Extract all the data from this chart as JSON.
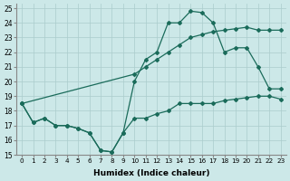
{
  "xlabel": "Humidex (Indice chaleur)",
  "bg_color": "#cce8e8",
  "line_color": "#1a6b5a",
  "grid_color": "#aacccc",
  "xlim": [
    -0.5,
    23.5
  ],
  "ylim": [
    15,
    25.3
  ],
  "xticks": [
    0,
    1,
    2,
    3,
    4,
    5,
    6,
    7,
    8,
    9,
    10,
    11,
    12,
    13,
    14,
    15,
    16,
    17,
    18,
    19,
    20,
    21,
    22,
    23
  ],
  "yticks": [
    15,
    16,
    17,
    18,
    19,
    20,
    21,
    22,
    23,
    24,
    25
  ],
  "line1_x": [
    0,
    1,
    2,
    3,
    4,
    5,
    6,
    7,
    8,
    9,
    10,
    11,
    12,
    13,
    14,
    15,
    16,
    17,
    18,
    19,
    20,
    21,
    22,
    23
  ],
  "line1_y": [
    18.5,
    17.2,
    17.5,
    17.0,
    17.0,
    16.8,
    16.5,
    15.3,
    15.2,
    16.5,
    17.5,
    17.5,
    17.8,
    18.0,
    18.5,
    18.5,
    18.5,
    18.5,
    18.7,
    18.8,
    18.9,
    19.0,
    19.0,
    18.8
  ],
  "line2_x": [
    0,
    1,
    2,
    3,
    4,
    5,
    6,
    7,
    8,
    9,
    10,
    11,
    12,
    13,
    14,
    15,
    16,
    17,
    18,
    19,
    20,
    21,
    22,
    23
  ],
  "line2_y": [
    18.5,
    17.2,
    17.5,
    17.0,
    17.0,
    16.8,
    16.5,
    15.3,
    15.2,
    16.5,
    20.0,
    21.5,
    22.0,
    24.0,
    24.0,
    24.8,
    24.7,
    24.0,
    22.0,
    22.3,
    22.3,
    21.0,
    19.5,
    19.5
  ],
  "line3_x": [
    0,
    10,
    11,
    12,
    13,
    14,
    15,
    16,
    17,
    18,
    19,
    20,
    21,
    22,
    23
  ],
  "line3_y": [
    18.5,
    20.5,
    21.0,
    21.5,
    22.0,
    22.5,
    23.0,
    23.2,
    23.4,
    23.5,
    23.6,
    23.7,
    23.5,
    23.5,
    23.5
  ]
}
